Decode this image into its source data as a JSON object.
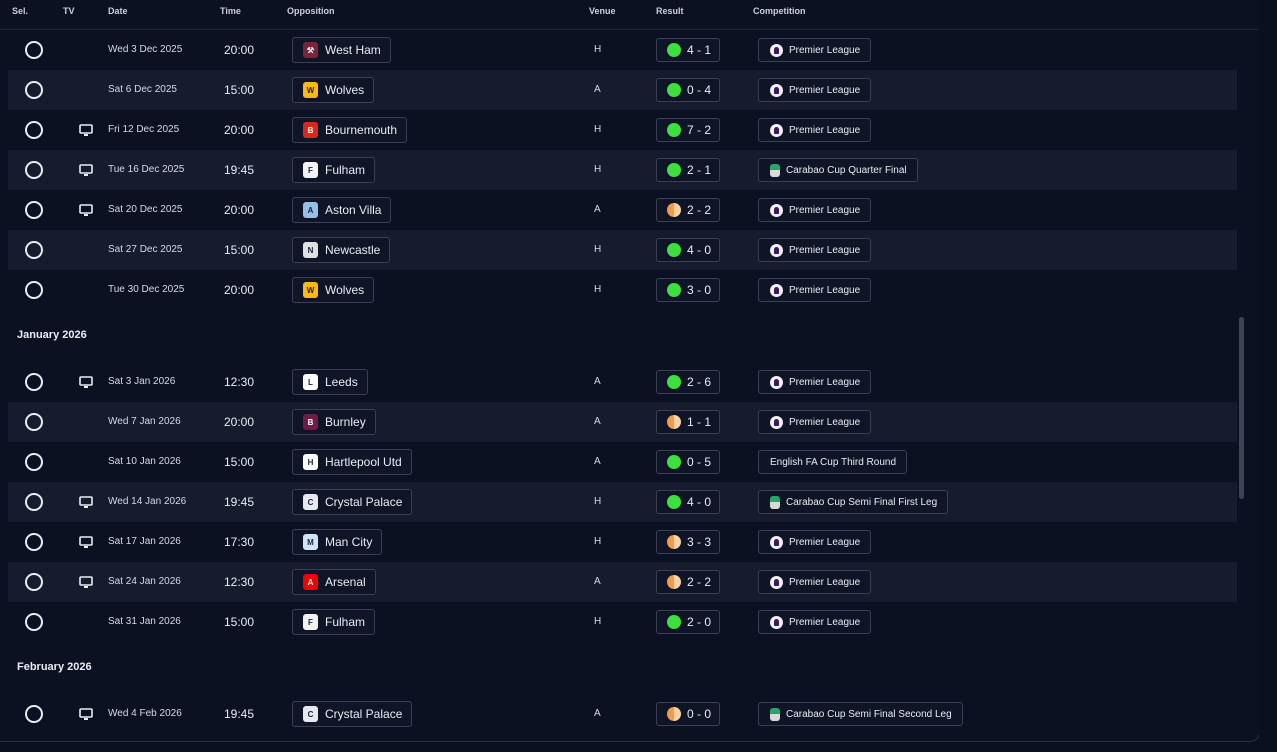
{
  "columns": {
    "sel": "Sel.",
    "tv": "TV",
    "date": "Date",
    "time": "Time",
    "opposition": "Opposition",
    "venue": "Venue",
    "result": "Result",
    "competition": "Competition"
  },
  "colors": {
    "win": "#3ee03e",
    "draw": "#f59a4a",
    "row_alt": "#161c2d",
    "background": "#0c1122"
  },
  "rows": [
    {
      "type": "fixture",
      "tv": false,
      "date": "Wed 3 Dec 2025",
      "time": "20:00",
      "opponent": "West Ham",
      "crest": "west-ham-crest",
      "venue": "H",
      "outcome": "win",
      "score": "4 - 1",
      "competition": "Premier League",
      "comp_icon": "pl"
    },
    {
      "type": "fixture",
      "tv": false,
      "date": "Sat 6 Dec 2025",
      "time": "15:00",
      "opponent": "Wolves",
      "crest": "wolves-crest",
      "venue": "A",
      "outcome": "win",
      "score": "0 - 4",
      "competition": "Premier League",
      "comp_icon": "pl"
    },
    {
      "type": "fixture",
      "tv": true,
      "date": "Fri 12 Dec 2025",
      "time": "20:00",
      "opponent": "Bournemouth",
      "crest": "bournemouth-crest",
      "venue": "H",
      "outcome": "win",
      "score": "7 - 2",
      "competition": "Premier League",
      "comp_icon": "pl"
    },
    {
      "type": "fixture",
      "tv": true,
      "date": "Tue 16 Dec 2025",
      "time": "19:45",
      "opponent": "Fulham",
      "crest": "fulham-crest",
      "venue": "H",
      "outcome": "win",
      "score": "2 - 1",
      "competition": "Carabao Cup Quarter Final",
      "comp_icon": "cup"
    },
    {
      "type": "fixture",
      "tv": true,
      "date": "Sat 20 Dec 2025",
      "time": "20:00",
      "opponent": "Aston Villa",
      "crest": "aston-villa-crest",
      "venue": "A",
      "outcome": "draw",
      "score": "2 - 2",
      "competition": "Premier League",
      "comp_icon": "pl"
    },
    {
      "type": "fixture",
      "tv": false,
      "date": "Sat 27 Dec 2025",
      "time": "15:00",
      "opponent": "Newcastle",
      "crest": "newcastle-crest",
      "venue": "H",
      "outcome": "win",
      "score": "4 - 0",
      "competition": "Premier League",
      "comp_icon": "pl"
    },
    {
      "type": "fixture",
      "tv": false,
      "date": "Tue 30 Dec 2025",
      "time": "20:00",
      "opponent": "Wolves",
      "crest": "wolves-crest",
      "venue": "H",
      "outcome": "win",
      "score": "3 - 0",
      "competition": "Premier League",
      "comp_icon": "pl"
    },
    {
      "type": "group",
      "label": "January 2026"
    },
    {
      "type": "fixture",
      "tv": true,
      "date": "Sat 3 Jan 2026",
      "time": "12:30",
      "opponent": "Leeds",
      "crest": "leeds-crest",
      "venue": "A",
      "outcome": "win",
      "score": "2 - 6",
      "competition": "Premier League",
      "comp_icon": "pl"
    },
    {
      "type": "fixture",
      "tv": false,
      "date": "Wed 7 Jan 2026",
      "time": "20:00",
      "opponent": "Burnley",
      "crest": "burnley-crest",
      "venue": "A",
      "outcome": "draw",
      "score": "1 - 1",
      "competition": "Premier League",
      "comp_icon": "pl"
    },
    {
      "type": "fixture",
      "tv": false,
      "date": "Sat 10 Jan 2026",
      "time": "15:00",
      "opponent": "Hartlepool Utd",
      "crest": "hartlepool-crest",
      "venue": "A",
      "outcome": "win",
      "score": "0 - 5",
      "competition": "English FA Cup Third Round",
      "comp_icon": "none"
    },
    {
      "type": "fixture",
      "tv": true,
      "date": "Wed 14 Jan 2026",
      "time": "19:45",
      "opponent": "Crystal Palace",
      "crest": "crystal-palace-crest",
      "venue": "H",
      "outcome": "win",
      "score": "4 - 0",
      "competition": "Carabao Cup Semi Final First Leg",
      "comp_icon": "cup"
    },
    {
      "type": "fixture",
      "tv": true,
      "date": "Sat 17 Jan 2026",
      "time": "17:30",
      "opponent": "Man City",
      "crest": "man-city-crest",
      "venue": "H",
      "outcome": "draw",
      "score": "3 - 3",
      "competition": "Premier League",
      "comp_icon": "pl"
    },
    {
      "type": "fixture",
      "tv": true,
      "date": "Sat 24 Jan 2026",
      "time": "12:30",
      "opponent": "Arsenal",
      "crest": "arsenal-crest",
      "venue": "A",
      "outcome": "draw",
      "score": "2 - 2",
      "competition": "Premier League",
      "comp_icon": "pl"
    },
    {
      "type": "fixture",
      "tv": false,
      "date": "Sat 31 Jan 2026",
      "time": "15:00",
      "opponent": "Fulham",
      "crest": "fulham-crest",
      "venue": "H",
      "outcome": "win",
      "score": "2 - 0",
      "competition": "Premier League",
      "comp_icon": "pl"
    },
    {
      "type": "group",
      "label": "February 2026"
    },
    {
      "type": "fixture",
      "tv": true,
      "date": "Wed 4 Feb 2026",
      "time": "19:45",
      "opponent": "Crystal Palace",
      "crest": "crystal-palace-crest",
      "venue": "A",
      "outcome": "draw",
      "score": "0 - 0",
      "competition": "Carabao Cup Semi Final Second Leg",
      "comp_icon": "cup"
    }
  ]
}
